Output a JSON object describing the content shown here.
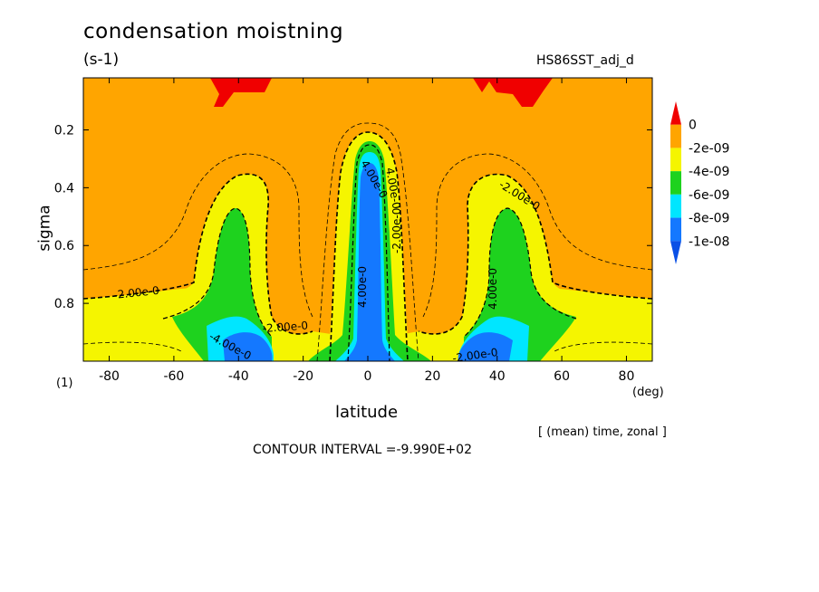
{
  "chart_data": {
    "type": "heatmap",
    "title": "condensation moistning",
    "units": "(s-1)",
    "run_name": "HS86SST_adj_d",
    "xlabel": "latitude",
    "x_units": "(deg)",
    "ylabel": "sigma",
    "y_units": "(1)",
    "xlim": [
      -88,
      88
    ],
    "ylim": [
      0.02,
      1.0
    ],
    "y_inverted": true,
    "x_ticks": [
      -80,
      -60,
      -40,
      -20,
      0,
      20,
      40,
      60,
      80
    ],
    "y_ticks": [
      0.2,
      0.4,
      0.6,
      0.8
    ],
    "averaging": "[ (mean) time, zonal ]",
    "contour_interval": "CONTOUR INTERVAL =-9.990E+02",
    "colorbar": {
      "labels": [
        "0",
        "-2e-09",
        "-4e-09",
        "-6e-09",
        "-8e-09",
        "-1e-08"
      ],
      "colors": [
        "#f00000",
        "#ffa500",
        "#f5f500",
        "#1ed21e",
        "#00e6ff",
        "#1478ff",
        "#0a50e6"
      ]
    },
    "contour_labels": [
      "-2.00e-0",
      "-2.00e-0",
      "-2.00e-0",
      "-2.00e-0",
      "-2.00e-0",
      "4.00e-0",
      "4.00e-0",
      "4.00e-0",
      "4.00e-0",
      "-4.00e-0"
    ],
    "features": [
      {
        "name": "equatorial tower",
        "lat": 0,
        "sigma_top": 0.18,
        "min_level": "-1e-08"
      },
      {
        "name": "southern midlatitude maximum",
        "lat": -40,
        "sigma_top": 0.4,
        "min_level": "-1e-08"
      },
      {
        "name": "northern midlatitude maximum",
        "lat": 40,
        "sigma_top": 0.4,
        "min_level": "-1e-08"
      },
      {
        "name": "upper positive patches",
        "lats": [
          -45,
          45
        ],
        "sigma": 0.05,
        "level": "0"
      }
    ]
  }
}
